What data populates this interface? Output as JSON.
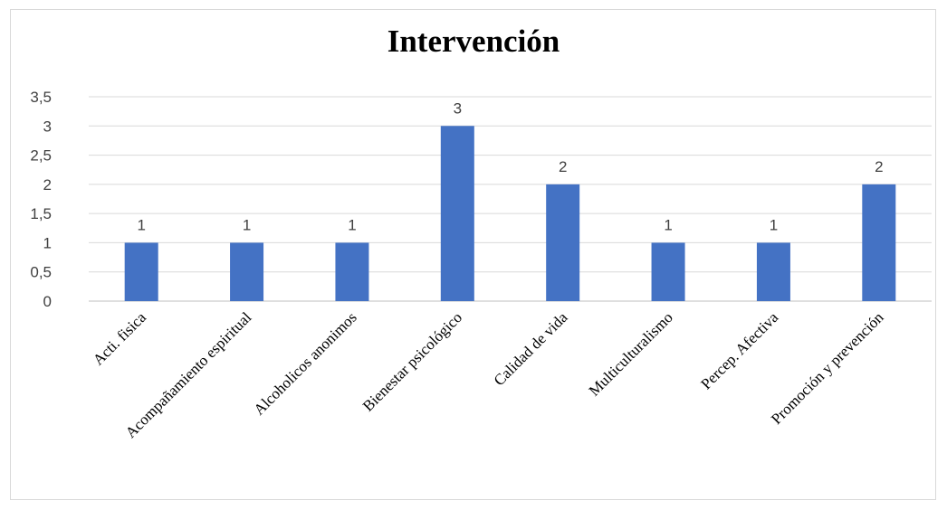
{
  "chart_data": {
    "type": "bar",
    "title": "Intervención",
    "categories": [
      "Acti. fisica",
      "Acompañamiento espiritual",
      "Alcoholicos anonimos",
      "Bienestar psicológico",
      "Calidad de vida",
      "Multiculturalismo",
      "Percep. Afectiva",
      "Promoción y prevención"
    ],
    "values": [
      1,
      1,
      1,
      3,
      2,
      1,
      1,
      2
    ],
    "data_labels": [
      "1",
      "1",
      "1",
      "3",
      "2",
      "1",
      "1",
      "2"
    ],
    "yticks": [
      "0",
      "0,5",
      "1",
      "1,5",
      "2",
      "2,5",
      "3",
      "3,5"
    ],
    "ylim": [
      0,
      3.5
    ],
    "grid": true,
    "legend": "none",
    "bar_color": "#4472c4"
  }
}
